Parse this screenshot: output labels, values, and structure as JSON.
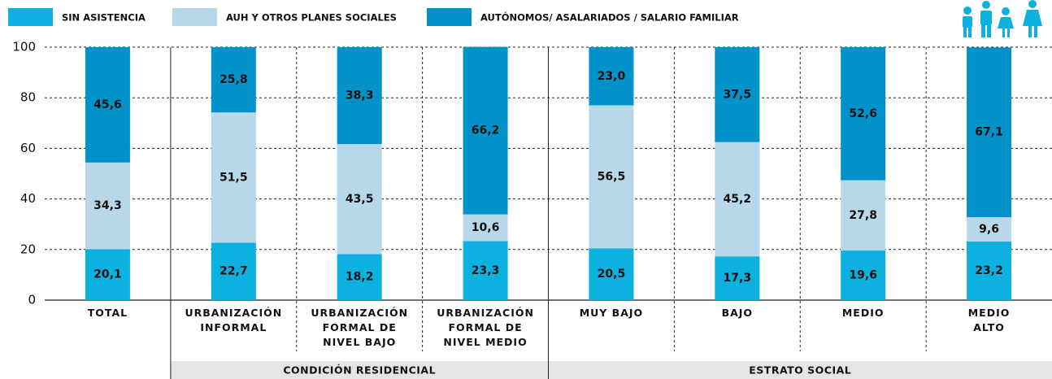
{
  "chart_data": {
    "type": "stacked_bar",
    "categories": [
      "TOTAL",
      "URBANIZACIÓN\nINFORMAL",
      "URBANIZACIÓN\nFORMAL DE\nNIVEL BAJO",
      "URBANIZACIÓN\nFORMAL DE\nNIVEL MEDIO",
      "MUY BAJO",
      "BAJO",
      "MEDIO",
      "MEDIO\nALTO"
    ],
    "groups": [
      "CONDICIÓN RESIDENCIAL",
      "ESTRATO SOCIAL"
    ],
    "series": [
      {
        "name": "SIN ASISTENCIA",
        "color": "#0cb1e0",
        "values": [
          20.1,
          22.7,
          18.2,
          23.3,
          20.5,
          17.3,
          19.6,
          23.2
        ],
        "value_labels": [
          "20,1",
          "22,7",
          "18,2",
          "23,3",
          "20,5",
          "17,3",
          "19,6",
          "23,2"
        ]
      },
      {
        "name": "AUH Y OTROS PLANES SOCIALES",
        "color": "#b8d8e9",
        "values": [
          34.3,
          51.5,
          43.5,
          10.6,
          56.5,
          45.2,
          27.8,
          9.6
        ],
        "value_labels": [
          "34,3",
          "51,5",
          "43,5",
          "10,6",
          "56,5",
          "45,2",
          "27,8",
          "9,6"
        ]
      },
      {
        "name": "AUTÓNOMOS/ ASALARIADOS / SALARIO FAMILIAR",
        "color": "#0092c9",
        "values": [
          45.6,
          25.8,
          38.3,
          66.2,
          23.0,
          37.5,
          52.6,
          67.1
        ],
        "value_labels": [
          "45,6",
          "25,8",
          "38,3",
          "66,2",
          "23,0",
          "37,5",
          "52,6",
          "67,1"
        ]
      }
    ],
    "ylim": [
      0,
      100
    ],
    "yticks": [
      0,
      20,
      40,
      60,
      80,
      100
    ],
    "grid": true
  }
}
